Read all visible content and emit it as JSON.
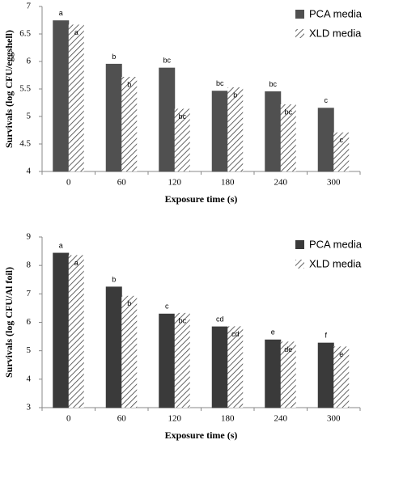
{
  "chart_data": [
    {
      "type": "bar",
      "y_label": "Survivals  (log CFU/eggshell)",
      "x_label": "Exposure  time  (s)",
      "categories": [
        "0",
        "60",
        "120",
        "180",
        "240",
        "300"
      ],
      "series": [
        {
          "name": "PCA media",
          "color": "#505050",
          "hatch": false,
          "values": [
            6.74,
            5.95,
            5.88,
            5.46,
            5.45,
            5.15
          ],
          "letters": [
            "a",
            "b",
            "bc",
            "bc",
            "bc",
            "c"
          ]
        },
        {
          "name": "XLD media",
          "color": "#404040",
          "hatch": true,
          "values": [
            6.67,
            5.72,
            5.14,
            5.53,
            5.22,
            4.71
          ],
          "letters": [
            "a",
            "b",
            "bc",
            "b",
            "bc",
            "c"
          ]
        }
      ],
      "ylim": [
        4,
        7
      ],
      "yticks": [
        4,
        4.5,
        5,
        5.5,
        6,
        6.5,
        7
      ],
      "legend": "upper right",
      "grid": false
    },
    {
      "type": "bar",
      "y_label": "Survivals  (log CFU/Al  foil)",
      "x_label": "Exposure  time  (s)",
      "categories": [
        "0",
        "60",
        "120",
        "180",
        "240",
        "300"
      ],
      "series": [
        {
          "name": "PCA media",
          "color": "#3a3a3a",
          "hatch": false,
          "values": [
            8.43,
            7.24,
            6.29,
            5.84,
            5.38,
            5.27
          ],
          "letters": [
            "a",
            "b",
            "c",
            "cd",
            "e",
            "f"
          ]
        },
        {
          "name": "XLD media",
          "color": "#404040",
          "hatch": true,
          "values": [
            8.36,
            6.93,
            6.33,
            5.86,
            5.32,
            5.15
          ],
          "letters": [
            "a",
            "b",
            "bc",
            "cd",
            "de",
            "e"
          ]
        }
      ],
      "ylim": [
        3,
        9
      ],
      "yticks": [
        3,
        4,
        5,
        6,
        7,
        8,
        9
      ],
      "legend": "upper right",
      "grid": false
    }
  ]
}
